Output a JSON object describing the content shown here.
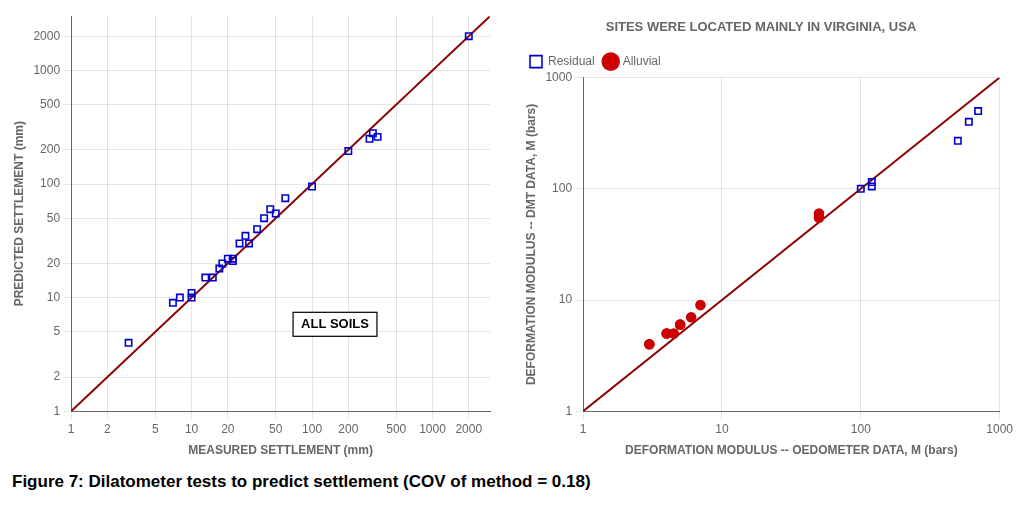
{
  "chart_data": [
    {
      "type": "scatter",
      "log": true,
      "grid": true,
      "xlabel": "MEASURED SETTLEMENT (mm)",
      "ylabel": "PREDICTED SETTLEMENT (mm)",
      "annotations": [
        "ALL SOILS"
      ],
      "xlim": [
        1,
        3000
      ],
      "ylim": [
        1,
        3000
      ],
      "xticks": [
        1,
        2,
        5,
        10,
        20,
        50,
        100,
        200,
        500,
        1000,
        2000
      ],
      "yticks": [
        1,
        2,
        5,
        10,
        20,
        50,
        100,
        200,
        500,
        1000,
        2000
      ],
      "series": [
        {
          "type": "line",
          "x": [
            1,
            3000
          ],
          "values": [
            1,
            3000
          ],
          "color": "#8B0000",
          "line_style": "solid"
        },
        {
          "x": [
            3,
            7,
            8,
            10,
            10,
            13,
            15,
            17,
            18,
            20,
            22,
            22,
            25,
            28,
            30,
            35,
            40,
            45,
            50,
            60,
            100,
            200,
            300,
            320,
            350,
            2000
          ],
          "values": [
            4,
            9,
            10,
            10,
            11,
            15,
            15,
            18,
            20,
            22,
            22,
            21,
            30,
            35,
            30,
            40,
            50,
            60,
            55,
            75,
            95,
            195,
            250,
            280,
            260,
            2000
          ],
          "color": "#0000CD",
          "marker": "square"
        }
      ]
    },
    {
      "type": "scatter",
      "log": true,
      "grid": true,
      "title": "SITES WERE LOCATED MAINLY IN VIRGINIA, USA",
      "xlabel": "DEFORMATION MODULUS -- OEDOMETER DATA, M (bars)",
      "ylabel": "DEFORMATION MODULUS -- DMT DATA, M (bars)",
      "legend": "upper left",
      "xlim": [
        1,
        1000
      ],
      "ylim": [
        1,
        1000
      ],
      "xticks": [
        1,
        10,
        100,
        1000
      ],
      "yticks": [
        1,
        10,
        100,
        1000
      ],
      "series": [
        {
          "type": "line",
          "x": [
            1,
            1000
          ],
          "values": [
            1,
            1000
          ],
          "color": "#8B0000",
          "line_style": "solid"
        },
        {
          "name": "Residual",
          "x": [
            120,
            120,
            100,
            500,
            600,
            700
          ],
          "values": [
            115,
            105,
            100,
            270,
            400,
            500
          ],
          "color": "#0000CD",
          "marker": "square"
        },
        {
          "name": "Alluvial",
          "x": [
            3,
            3,
            4,
            4,
            4.5,
            5,
            5,
            6,
            7,
            50,
            50
          ],
          "values": [
            4,
            4,
            5,
            5,
            5,
            6,
            6,
            7,
            9,
            55,
            60
          ],
          "color": "#CC0000",
          "marker": "circle"
        }
      ]
    }
  ],
  "caption": "Figure 7: Dilatometer tests to predict settlement (COV of method = 0.18)"
}
